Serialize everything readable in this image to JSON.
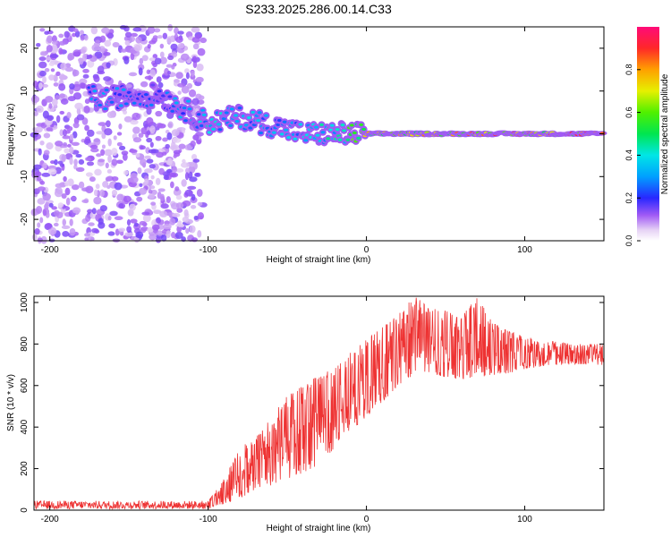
{
  "title": "S233.2025.286.00.14.C33",
  "chart_data": [
    {
      "type": "heatmap",
      "xlabel": "Height of straight line (km)",
      "ylabel": "Frequency (Hz)",
      "xlim": [
        -210,
        150
      ],
      "ylim": [
        -25,
        25
      ],
      "xticks": [
        -200,
        -100,
        0,
        100
      ],
      "xtick_labels": [
        "-200",
        "-100",
        "0",
        "100"
      ],
      "yticks": [
        -20,
        -10,
        0,
        10,
        20
      ],
      "ytick_labels": [
        "-20",
        "-10",
        "0",
        "10",
        "20"
      ],
      "colorbar": {
        "label": "Normalized spectral amplitude",
        "range": [
          0,
          1
        ],
        "ticks": [
          0,
          0.2,
          0.4,
          0.6,
          0.8
        ],
        "tick_labels": [
          "0.0",
          "0.2",
          "0.4",
          "0.6",
          "0.8"
        ]
      },
      "features": {
        "noise_region_x": [
          -210,
          -103
        ],
        "signal_track": [
          {
            "x": -175,
            "y": 9,
            "amp": 0.3
          },
          {
            "x": -165,
            "y": 8,
            "amp": 0.35
          },
          {
            "x": -150,
            "y": 9,
            "amp": 0.25
          },
          {
            "x": -130,
            "y": 9,
            "amp": 0.25
          },
          {
            "x": -100,
            "y": 2.5,
            "amp": 0.4
          },
          {
            "x": -80,
            "y": 4,
            "amp": 0.35
          },
          {
            "x": -60,
            "y": 2,
            "amp": 0.35
          },
          {
            "x": -40,
            "y": 0,
            "amp": 0.35
          },
          {
            "x": -20,
            "y": 0,
            "amp": 0.45
          },
          {
            "x": 0,
            "y": 0,
            "amp": 0.75
          },
          {
            "x": 50,
            "y": 0,
            "amp": 0.8
          },
          {
            "x": 100,
            "y": 0,
            "amp": 0.85
          },
          {
            "x": 150,
            "y": 0,
            "amp": 0.85
          }
        ]
      }
    },
    {
      "type": "line",
      "xlabel": "Height of straight line (km)",
      "ylabel": "SNR (10 * v/v)",
      "xlim": [
        -210,
        150
      ],
      "ylim": [
        0,
        1030
      ],
      "xticks": [
        -200,
        -100,
        0,
        100
      ],
      "xtick_labels": [
        "-200",
        "-100",
        "0",
        "100"
      ],
      "yticks": [
        0,
        200,
        400,
        600,
        800,
        1000
      ],
      "ytick_labels": [
        "0",
        "200",
        "400",
        "600",
        "800",
        "1000"
      ],
      "series": [
        {
          "name": "SNR",
          "color": "#ee3333",
          "envelope": {
            "x": [
              -210,
              -110,
              -100,
              -90,
              -80,
              -70,
              -60,
              -50,
              -40,
              -30,
              -20,
              -10,
              0,
              10,
              20,
              30,
              40,
              50,
              60,
              70,
              80,
              90,
              100,
              110,
              120,
              130,
              140,
              150
            ],
            "lo": [
              5,
              5,
              5,
              30,
              60,
              90,
              120,
              150,
              180,
              220,
              300,
              380,
              450,
              520,
              600,
              650,
              660,
              640,
              630,
              640,
              650,
              660,
              680,
              690,
              700,
              700,
              700,
              700
            ],
            "hi": [
              45,
              45,
              45,
              150,
              300,
              350,
              450,
              550,
              600,
              650,
              700,
              760,
              820,
              880,
              940,
              1030,
              980,
              960,
              930,
              1030,
              900,
              860,
              840,
              820,
              810,
              800,
              800,
              800
            ]
          }
        }
      ]
    }
  ]
}
